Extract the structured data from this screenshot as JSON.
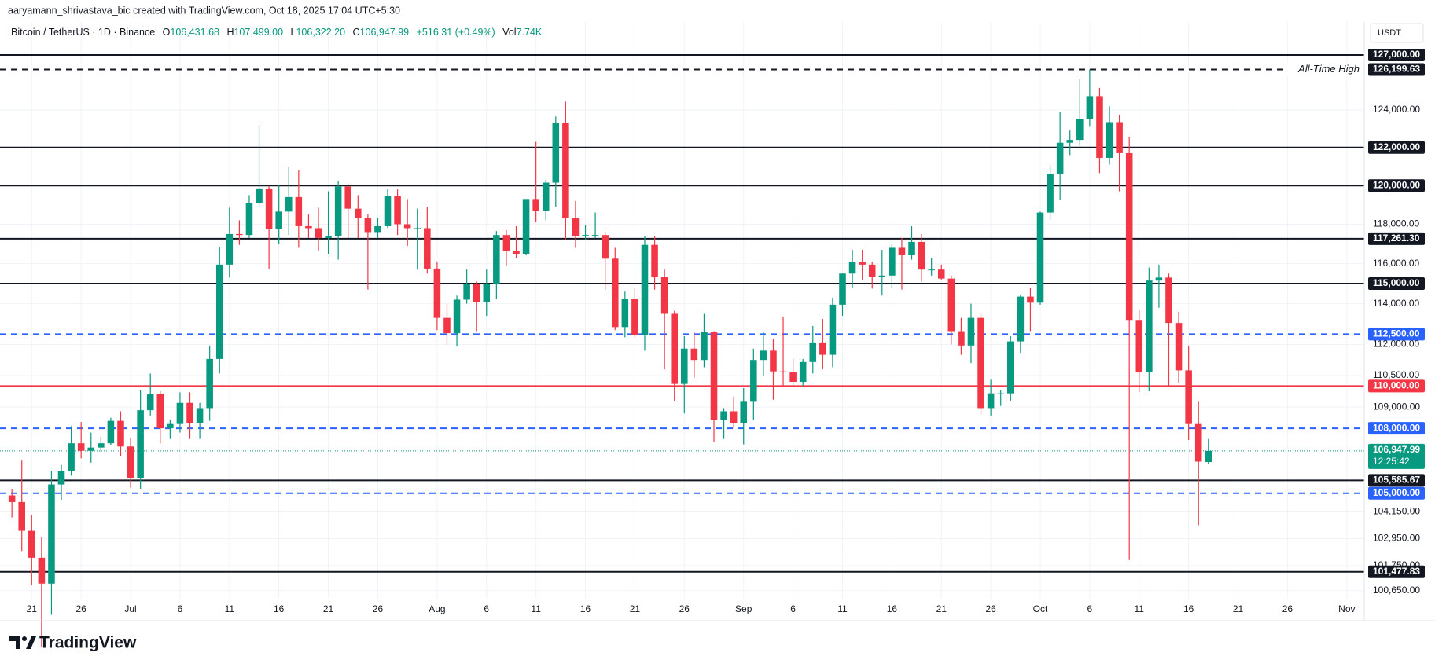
{
  "header": {
    "credit": "aaryamann_shrivastava_bic created with TradingView.com, Oct 18, 2025 17:04 UTC+5:30",
    "symbol": "Bitcoin / TetherUS · 1D · Binance",
    "open_label": "O",
    "open": "106,431.68",
    "high_label": "H",
    "high": "107,499.00",
    "low_label": "L",
    "low": "106,322.20",
    "close_label": "C",
    "close": "106,947.99",
    "change": "+516.31 (+0.49%)",
    "volume_label": "Vol",
    "volume": "7.74K",
    "currency": "USDT",
    "branding": "TradingView"
  },
  "chart_data": {
    "type": "candlestick",
    "up_color": "#089981",
    "down_color": "#f23645",
    "log_scale": true,
    "grid": true,
    "ylim": [
      100300,
      128830
    ],
    "xlim": [
      "2025-06-17",
      "2025-11-03"
    ],
    "yticks": [
      {
        "value": 124000,
        "label": "124,000.00"
      },
      {
        "value": 118000,
        "label": "118,000.00"
      },
      {
        "value": 116000,
        "label": "116,000.00"
      },
      {
        "value": 114000,
        "label": "114,000.00"
      },
      {
        "value": 112000,
        "label": "112,000.00"
      },
      {
        "value": 110500,
        "label": "110,500.00"
      },
      {
        "value": 109000,
        "label": "109,000.00"
      },
      {
        "value": 104150,
        "label": "104,150.00"
      },
      {
        "value": 102950,
        "label": "102,950.00"
      },
      {
        "value": 101750,
        "label": "101,750.00"
      },
      {
        "value": 100650,
        "label": "100,650.00"
      }
    ],
    "xticks": [
      {
        "value": "2025-06-21",
        "label": "21"
      },
      {
        "value": "2025-06-26",
        "label": "26"
      },
      {
        "value": "2025-07-01",
        "label": "Jul"
      },
      {
        "value": "2025-07-06",
        "label": "6"
      },
      {
        "value": "2025-07-11",
        "label": "11"
      },
      {
        "value": "2025-07-16",
        "label": "16"
      },
      {
        "value": "2025-07-21",
        "label": "21"
      },
      {
        "value": "2025-07-26",
        "label": "26"
      },
      {
        "value": "2025-08-01",
        "label": "Aug"
      },
      {
        "value": "2025-08-06",
        "label": "6"
      },
      {
        "value": "2025-08-11",
        "label": "11"
      },
      {
        "value": "2025-08-16",
        "label": "16"
      },
      {
        "value": "2025-08-21",
        "label": "21"
      },
      {
        "value": "2025-08-26",
        "label": "26"
      },
      {
        "value": "2025-09-01",
        "label": "Sep"
      },
      {
        "value": "2025-09-06",
        "label": "6"
      },
      {
        "value": "2025-09-11",
        "label": "11"
      },
      {
        "value": "2025-09-16",
        "label": "16"
      },
      {
        "value": "2025-09-21",
        "label": "21"
      },
      {
        "value": "2025-09-26",
        "label": "26"
      },
      {
        "value": "2025-10-01",
        "label": "Oct"
      },
      {
        "value": "2025-10-06",
        "label": "6"
      },
      {
        "value": "2025-10-11",
        "label": "11"
      },
      {
        "value": "2025-10-16",
        "label": "16"
      },
      {
        "value": "2025-10-21",
        "label": "21"
      },
      {
        "value": "2025-10-26",
        "label": "26"
      },
      {
        "value": "2025-11-01",
        "label": "Nov"
      }
    ],
    "levels": [
      {
        "value": 127000,
        "label": "127,000.00",
        "color": "#131722",
        "style": "solid"
      },
      {
        "value": 126199.63,
        "label": "126,199.63",
        "color": "#131722",
        "style": "dashed",
        "note": "All-Time High"
      },
      {
        "value": 122000,
        "label": "122,000.00",
        "color": "#131722",
        "style": "solid"
      },
      {
        "value": 120000,
        "label": "120,000.00",
        "color": "#131722",
        "style": "solid"
      },
      {
        "value": 117261.3,
        "label": "117,261.30",
        "color": "#131722",
        "style": "solid"
      },
      {
        "value": 115000,
        "label": "115,000.00",
        "color": "#131722",
        "style": "solid"
      },
      {
        "value": 112500,
        "label": "112,500.00",
        "color": "#2962ff",
        "style": "dashed"
      },
      {
        "value": 110000,
        "label": "110,000.00",
        "color": "#f23645",
        "style": "solid"
      },
      {
        "value": 108000,
        "label": "108,000.00",
        "color": "#2962ff",
        "style": "dashed"
      },
      {
        "value": 105585.67,
        "label": "105,585.67",
        "color": "#131722",
        "style": "solid"
      },
      {
        "value": 105000,
        "label": "105,000.00",
        "color": "#2962ff",
        "style": "dashed"
      },
      {
        "value": 101477.83,
        "label": "101,477.83",
        "color": "#131722",
        "style": "solid"
      }
    ],
    "last_price": {
      "value": 106947.99,
      "label": "106,947.99",
      "countdown": "12:25:42",
      "color": "#089981"
    },
    "dates": [
      "2025-06-19",
      "2025-06-20",
      "2025-06-21",
      "2025-06-22",
      "2025-06-23",
      "2025-06-24",
      "2025-06-25",
      "2025-06-26",
      "2025-06-27",
      "2025-06-28",
      "2025-06-29",
      "2025-06-30",
      "2025-07-01",
      "2025-07-02",
      "2025-07-03",
      "2025-07-04",
      "2025-07-05",
      "2025-07-06",
      "2025-07-07",
      "2025-07-08",
      "2025-07-09",
      "2025-07-10",
      "2025-07-11",
      "2025-07-12",
      "2025-07-13",
      "2025-07-14",
      "2025-07-15",
      "2025-07-16",
      "2025-07-17",
      "2025-07-18",
      "2025-07-19",
      "2025-07-20",
      "2025-07-21",
      "2025-07-22",
      "2025-07-23",
      "2025-07-24",
      "2025-07-25",
      "2025-07-26",
      "2025-07-27",
      "2025-07-28",
      "2025-07-29",
      "2025-07-30",
      "2025-07-31",
      "2025-08-01",
      "2025-08-02",
      "2025-08-03",
      "2025-08-04",
      "2025-08-05",
      "2025-08-06",
      "2025-08-07",
      "2025-08-08",
      "2025-08-09",
      "2025-08-10",
      "2025-08-11",
      "2025-08-12",
      "2025-08-13",
      "2025-08-14",
      "2025-08-15",
      "2025-08-16",
      "2025-08-17",
      "2025-08-18",
      "2025-08-19",
      "2025-08-20",
      "2025-08-21",
      "2025-08-22",
      "2025-08-23",
      "2025-08-24",
      "2025-08-25",
      "2025-08-26",
      "2025-08-27",
      "2025-08-28",
      "2025-08-29",
      "2025-08-30",
      "2025-08-31",
      "2025-09-01",
      "2025-09-02",
      "2025-09-03",
      "2025-09-04",
      "2025-09-05",
      "2025-09-06",
      "2025-09-07",
      "2025-09-08",
      "2025-09-09",
      "2025-09-10",
      "2025-09-11",
      "2025-09-12",
      "2025-09-13",
      "2025-09-14",
      "2025-09-15",
      "2025-09-16",
      "2025-09-17",
      "2025-09-18",
      "2025-09-19",
      "2025-09-20",
      "2025-09-21",
      "2025-09-22",
      "2025-09-23",
      "2025-09-24",
      "2025-09-25",
      "2025-09-26",
      "2025-09-27",
      "2025-09-28",
      "2025-09-29",
      "2025-09-30",
      "2025-10-01",
      "2025-10-02",
      "2025-10-03",
      "2025-10-04",
      "2025-10-05",
      "2025-10-06",
      "2025-10-07",
      "2025-10-08",
      "2025-10-09",
      "2025-10-10",
      "2025-10-11",
      "2025-10-12",
      "2025-10-13",
      "2025-10-14",
      "2025-10-15",
      "2025-10-16",
      "2025-10-17",
      "2025-10-18"
    ],
    "ohlc": [
      [
        104900,
        105200,
        103900,
        104600
      ],
      [
        104600,
        106500,
        102400,
        103300
      ],
      [
        103300,
        104000,
        100900,
        102100
      ],
      [
        102100,
        103000,
        98200,
        100960
      ],
      [
        100960,
        106000,
        99600,
        105400
      ],
      [
        105400,
        106300,
        104700,
        106000
      ],
      [
        106000,
        108100,
        105800,
        107300
      ],
      [
        107300,
        108300,
        106600,
        106950
      ],
      [
        106950,
        107800,
        106400,
        107100
      ],
      [
        107100,
        107600,
        106900,
        107300
      ],
      [
        107300,
        108500,
        107200,
        108350
      ],
      [
        108350,
        108800,
        106700,
        107150
      ],
      [
        107150,
        107550,
        105250,
        105700
      ],
      [
        105700,
        109800,
        105200,
        108850
      ],
      [
        108850,
        110600,
        108600,
        109600
      ],
      [
        109600,
        109750,
        107300,
        108000
      ],
      [
        108000,
        108400,
        107500,
        108200
      ],
      [
        108200,
        109700,
        107800,
        109200
      ],
      [
        109200,
        109700,
        107500,
        108250
      ],
      [
        108250,
        109200,
        107500,
        108950
      ],
      [
        108950,
        111950,
        108350,
        111300
      ],
      [
        111300,
        116850,
        110600,
        115950
      ],
      [
        115950,
        118850,
        115300,
        117500
      ],
      [
        117500,
        118200,
        116950,
        117450
      ],
      [
        117450,
        119500,
        117300,
        119100
      ],
      [
        119100,
        123200,
        118900,
        119850
      ],
      [
        119850,
        119950,
        115750,
        117750
      ],
      [
        117750,
        120000,
        117000,
        118650
      ],
      [
        118650,
        120950,
        117450,
        119400
      ],
      [
        119400,
        120800,
        116800,
        117900
      ],
      [
        117900,
        118500,
        117300,
        117800
      ],
      [
        117800,
        118850,
        116650,
        117300
      ],
      [
        117300,
        119700,
        116500,
        117400
      ],
      [
        117400,
        120250,
        116200,
        119950
      ],
      [
        119950,
        120100,
        117300,
        118800
      ],
      [
        118800,
        119500,
        117300,
        118300
      ],
      [
        118300,
        118500,
        114700,
        117600
      ],
      [
        117600,
        118300,
        117300,
        117900
      ],
      [
        117900,
        119800,
        117800,
        119450
      ],
      [
        119450,
        119800,
        117450,
        118000
      ],
      [
        118000,
        119300,
        116900,
        117800
      ],
      [
        117800,
        118800,
        115700,
        117800
      ],
      [
        117800,
        118900,
        115500,
        115750
      ],
      [
        115750,
        116100,
        112700,
        113300
      ],
      [
        113300,
        114000,
        112000,
        112550
      ],
      [
        112550,
        114400,
        111900,
        114200
      ],
      [
        114200,
        115700,
        114000,
        115000
      ],
      [
        115000,
        115100,
        112650,
        114100
      ],
      [
        114100,
        115700,
        113400,
        115000
      ],
      [
        115000,
        117650,
        114250,
        117450
      ],
      [
        117450,
        117700,
        115900,
        116650
      ],
      [
        116650,
        117900,
        116300,
        116500
      ],
      [
        116500,
        119300,
        116450,
        119300
      ],
      [
        119300,
        122300,
        118100,
        118700
      ],
      [
        118700,
        120300,
        118200,
        120150
      ],
      [
        120150,
        123650,
        118900,
        123300
      ],
      [
        123300,
        124450,
        117200,
        118300
      ],
      [
        118300,
        119200,
        116800,
        117400
      ],
      [
        117400,
        117950,
        117200,
        117450
      ],
      [
        117450,
        118600,
        117300,
        117450
      ],
      [
        117450,
        117600,
        114700,
        116250
      ],
      [
        116250,
        116800,
        112700,
        112850
      ],
      [
        112850,
        114600,
        112350,
        114250
      ],
      [
        114250,
        114800,
        112350,
        112450
      ],
      [
        112450,
        117400,
        111700,
        116950
      ],
      [
        116950,
        117400,
        114700,
        115350
      ],
      [
        115350,
        115700,
        110800,
        113500
      ],
      [
        113500,
        113650,
        109300,
        110100
      ],
      [
        110100,
        112400,
        108700,
        111800
      ],
      [
        111800,
        112600,
        110400,
        111250
      ],
      [
        111250,
        113500,
        110900,
        112600
      ],
      [
        112600,
        112650,
        107350,
        108400
      ],
      [
        108400,
        108950,
        107500,
        108800
      ],
      [
        108800,
        109500,
        108000,
        108250
      ],
      [
        108250,
        109900,
        107250,
        109250
      ],
      [
        109250,
        111800,
        108400,
        111250
      ],
      [
        111250,
        112600,
        110500,
        111700
      ],
      [
        111700,
        112250,
        109350,
        110700
      ],
      [
        110700,
        113350,
        110000,
        110650
      ],
      [
        110650,
        111300,
        110000,
        110200
      ],
      [
        110200,
        111300,
        110000,
        111150
      ],
      [
        111150,
        112900,
        110600,
        112100
      ],
      [
        112100,
        113250,
        110800,
        111500
      ],
      [
        111500,
        114300,
        110900,
        113950
      ],
      [
        113950,
        115500,
        113400,
        115500
      ],
      [
        115500,
        116700,
        114800,
        116100
      ],
      [
        116100,
        116700,
        115200,
        115950
      ],
      [
        115950,
        116100,
        114750,
        115350
      ],
      [
        115350,
        116700,
        114400,
        115400
      ],
      [
        115400,
        117000,
        114800,
        116800
      ],
      [
        116800,
        117300,
        114700,
        116450
      ],
      [
        116450,
        117900,
        116200,
        117100
      ],
      [
        117100,
        117500,
        115100,
        115700
      ],
      [
        115700,
        116300,
        115400,
        115700
      ],
      [
        115700,
        115950,
        115200,
        115250
      ],
      [
        115250,
        115400,
        112000,
        112650
      ],
      [
        112650,
        113300,
        111500,
        111950
      ],
      [
        111950,
        114000,
        111100,
        113300
      ],
      [
        113300,
        113500,
        108650,
        108950
      ],
      [
        108950,
        110300,
        108600,
        109650
      ],
      [
        109650,
        109800,
        109050,
        109650
      ],
      [
        109650,
        112400,
        109300,
        112150
      ],
      [
        112150,
        114450,
        111600,
        114350
      ],
      [
        114350,
        114800,
        112650,
        114050
      ],
      [
        114050,
        118650,
        113950,
        118600
      ],
      [
        118600,
        121050,
        118250,
        120600
      ],
      [
        120600,
        123900,
        119250,
        122250
      ],
      [
        122250,
        122900,
        121600,
        122400
      ],
      [
        122400,
        125700,
        122100,
        123500
      ],
      [
        123500,
        126199.63,
        123100,
        124750
      ],
      [
        124750,
        125200,
        120650,
        121450
      ],
      [
        121450,
        124200,
        121100,
        123350
      ],
      [
        123350,
        123750,
        119700,
        121700
      ],
      [
        121700,
        122550,
        102000,
        113200
      ],
      [
        113200,
        113700,
        109700,
        110650
      ],
      [
        110650,
        115800,
        109750,
        115150
      ],
      [
        115150,
        115950,
        113800,
        115300
      ],
      [
        115300,
        115500,
        110000,
        113050
      ],
      [
        113050,
        113600,
        110150,
        110750
      ],
      [
        110750,
        111950,
        107450,
        108200
      ],
      [
        108200,
        109250,
        103550,
        106450
      ],
      [
        106431.68,
        107499,
        106322.2,
        106947.99
      ]
    ]
  }
}
